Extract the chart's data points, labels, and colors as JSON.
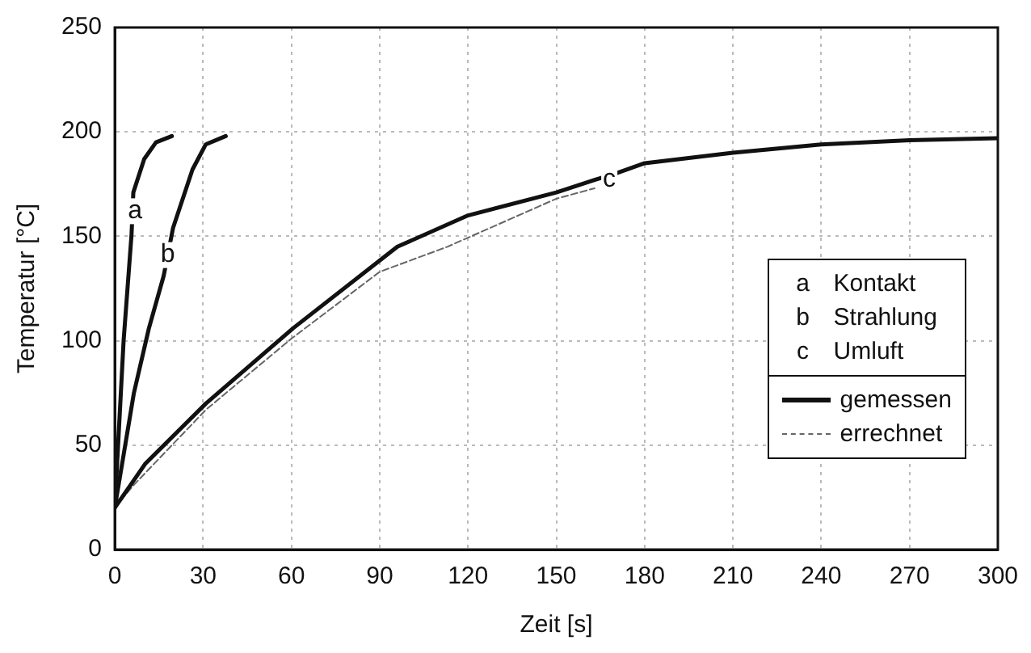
{
  "chart_data": {
    "type": "line",
    "xlabel": "Zeit [s]",
    "ylabel": "Temperatur [°C]",
    "xlim": [
      0,
      300
    ],
    "xticks": [
      0,
      30,
      60,
      90,
      120,
      150,
      180,
      210,
      240,
      270,
      300
    ],
    "ylim": [
      0,
      250
    ],
    "yticks": [
      0,
      50,
      100,
      150,
      200,
      250
    ],
    "grid": true,
    "legend": "right",
    "marker": "none",
    "series": [
      {
        "color": "#111111",
        "line_style": "solid",
        "x": [
          0,
          3,
          5.7,
          6.3,
          10,
          14,
          19.4
        ],
        "values": [
          20,
          100,
          151,
          171,
          187,
          195,
          198
        ]
      },
      {
        "color": "#111111",
        "line_style": "solid",
        "x": [
          0,
          6.5,
          11.6,
          16.6,
          19.8,
          26.4,
          30.9,
          37.7
        ],
        "values": [
          20,
          75,
          106,
          131,
          154,
          182,
          194,
          198
        ]
      },
      {
        "color": "#111111",
        "line_style": "solid",
        "x": [
          0,
          10.3,
          31,
          60.6,
          96,
          120,
          150,
          163,
          170,
          180,
          210,
          240,
          270,
          300
        ],
        "values": [
          20,
          41,
          70,
          106,
          145,
          160,
          171,
          177,
          180,
          185,
          190,
          194,
          196,
          197
        ]
      },
      {
        "name": "errechnet",
        "color": "#666666",
        "line_style": "dashed",
        "x": [
          0,
          6.5,
          31,
          60,
          90,
          113,
          150,
          163
        ],
        "values": [
          20,
          31,
          67,
          101,
          133,
          145,
          168,
          173
        ]
      }
    ],
    "annotations": [
      {
        "text": "a",
        "x": 6.9,
        "y": 162
      },
      {
        "text": "b",
        "x": 18,
        "y": 141
      },
      {
        "text": "c",
        "x": 168,
        "y": 177
      },
      "Kontakt",
      "Strahlung",
      "Umluft",
      "gemessen"
    ]
  }
}
